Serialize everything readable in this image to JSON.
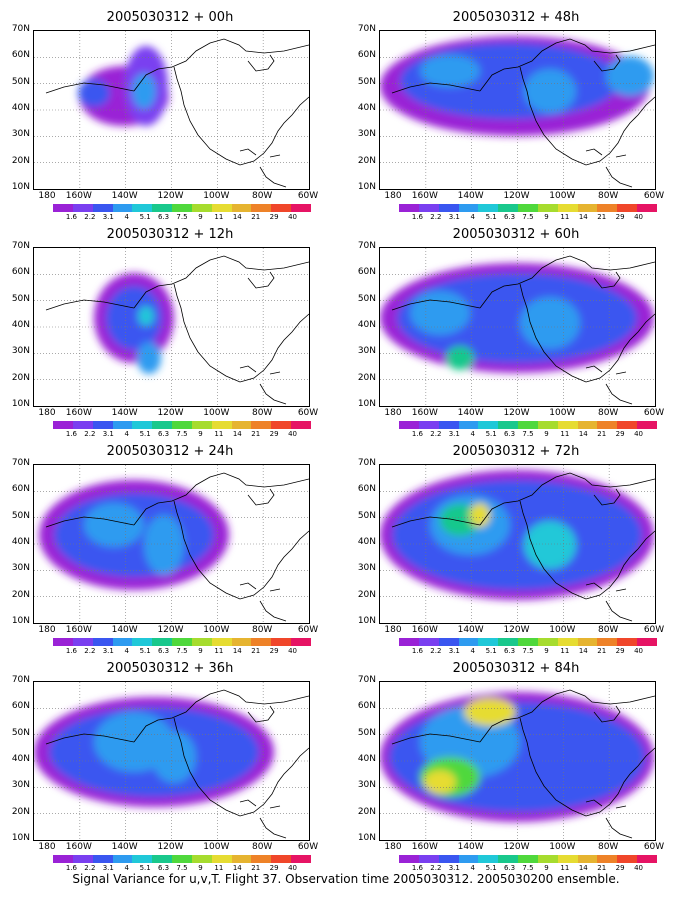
{
  "panels": [
    {
      "title": "2005030312 + 00h"
    },
    {
      "title": "2005030312 + 48h"
    },
    {
      "title": "2005030312 + 12h"
    },
    {
      "title": "2005030312 + 60h"
    },
    {
      "title": "2005030312 + 24h"
    },
    {
      "title": "2005030312 + 72h"
    },
    {
      "title": "2005030312 + 36h"
    },
    {
      "title": "2005030312 + 84h"
    }
  ],
  "latitude_labels": [
    "70N",
    "60N",
    "50N",
    "40N",
    "30N",
    "20N",
    "10N"
  ],
  "longitude_labels": [
    "180",
    "160W",
    "140W",
    "120W",
    "100W",
    "80W",
    "60W"
  ],
  "colorbar": {
    "labels": [
      "1.6",
      "2.2",
      "3.1",
      "4",
      "5.1",
      "6.3",
      "7.5",
      "9",
      "11",
      "14",
      "21",
      "29",
      "40"
    ],
    "colors": [
      "#9a22d6",
      "#7a3ff0",
      "#3a56f0",
      "#2e9bf0",
      "#20c8d8",
      "#19c88c",
      "#4fd83c",
      "#a6dc2e",
      "#e6dc32",
      "#e6b430",
      "#ee8228",
      "#f0462a",
      "#e61464"
    ]
  },
  "caption": "Signal Variance for u,v,T. Flight 37. Observation time 2005030312. 2005030200 ensemble."
}
